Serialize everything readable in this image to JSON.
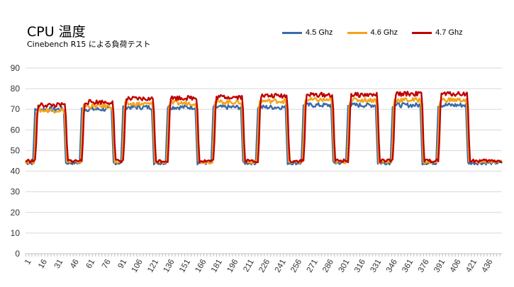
{
  "chart_data": {
    "type": "line",
    "title": "CPU 温度",
    "subtitle": "Cinebench R15 による負荷テスト",
    "ylim": [
      0,
      90
    ],
    "yticks": [
      0,
      10,
      20,
      30,
      40,
      50,
      60,
      70,
      80,
      90
    ],
    "x_start": 1,
    "x_end": 450,
    "x_tick_labels": [
      "1",
      "16",
      "31",
      "46",
      "61",
      "76",
      "91",
      "106",
      "121",
      "136",
      "151",
      "166",
      "181",
      "196",
      "211",
      "226",
      "241",
      "256",
      "271",
      "286",
      "301",
      "316",
      "331",
      "346",
      "361",
      "376",
      "391",
      "406",
      "421",
      "436"
    ],
    "grid": "horizontal",
    "legend_position": "top-right",
    "plateau_x": [
      [
        10,
        37
      ],
      [
        54,
        82
      ],
      [
        93,
        120
      ],
      [
        135,
        161
      ],
      [
        178,
        204
      ],
      [
        220,
        246
      ],
      [
        263,
        289
      ],
      [
        305,
        331
      ],
      [
        347,
        373
      ],
      [
        390,
        416
      ]
    ],
    "series": [
      {
        "name": "4.5 Ghz",
        "color": "#3a6baa",
        "idle": 44,
        "plateau_values": [
          70,
          70,
          71,
          71,
          71,
          71,
          72,
          72,
          72,
          72
        ]
      },
      {
        "name": "4.6 Ghz",
        "color": "#f5a31a",
        "idle": 44.5,
        "plateau_values": [
          69.5,
          71.5,
          72.5,
          73,
          73.5,
          74,
          74.5,
          74.5,
          74.5,
          74.5
        ]
      },
      {
        "name": "4.7 Ghz",
        "color": "#c00000",
        "idle": 45,
        "plateau_values": [
          72,
          73.5,
          75,
          75.5,
          76,
          76.5,
          77,
          77,
          77.5,
          77.5
        ]
      }
    ]
  }
}
